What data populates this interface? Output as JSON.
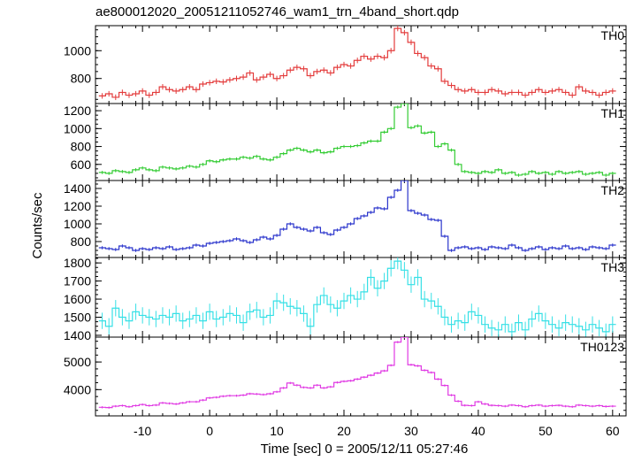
{
  "title": "ae800012020_20051211052746_wam1_trn_4band_short.qdp",
  "ylabel": "Counts/sec",
  "xlabel": "Time [sec] 0 = 2005/12/11 05:27:46",
  "chart_data": [
    {
      "type": "line",
      "panel": "TH0",
      "color": "#e33b3b",
      "ylim": [
        620,
        1180
      ],
      "yticks": [
        800,
        1000
      ],
      "xlim": [
        -17,
        62
      ],
      "x": [
        -16,
        -15,
        -14,
        -13,
        -12,
        -11,
        -10,
        -9,
        -8,
        -7,
        -6,
        -5,
        -4,
        -3,
        -2,
        -1,
        0,
        1,
        2,
        3,
        4,
        5,
        6,
        7,
        8,
        9,
        10,
        11,
        12,
        13,
        14,
        15,
        16,
        17,
        18,
        19,
        20,
        21,
        22,
        23,
        24,
        25,
        26,
        27,
        28,
        29,
        30,
        31,
        32,
        33,
        34,
        35,
        36,
        37,
        38,
        39,
        40,
        41,
        42,
        43,
        44,
        45,
        46,
        47,
        48,
        49,
        50,
        51,
        52,
        53,
        54,
        55,
        56,
        57,
        58,
        59,
        60
      ],
      "y": [
        675,
        690,
        665,
        700,
        680,
        690,
        710,
        680,
        700,
        740,
        720,
        710,
        720,
        740,
        720,
        760,
        770,
        780,
        775,
        790,
        800,
        810,
        840,
        790,
        810,
        830,
        800,
        820,
        860,
        880,
        870,
        820,
        850,
        860,
        840,
        880,
        900,
        890,
        930,
        960,
        940,
        960,
        950,
        1000,
        1160,
        1130,
        1060,
        980,
        950,
        890,
        870,
        780,
        750,
        720,
        710,
        720,
        700,
        700,
        720,
        710,
        690,
        700,
        700,
        680,
        700,
        720,
        700,
        710,
        720,
        700,
        680,
        740,
        710,
        700,
        680,
        700,
        710
      ],
      "err": 20
    },
    {
      "type": "line",
      "panel": "TH1",
      "color": "#33cc33",
      "ylim": [
        420,
        1280
      ],
      "yticks": [
        600,
        800,
        1000,
        1200
      ],
      "xlim": [
        -17,
        62
      ],
      "x": [
        -16,
        -15,
        -14,
        -13,
        -12,
        -11,
        -10,
        -9,
        -8,
        -7,
        -6,
        -5,
        -4,
        -3,
        -2,
        -1,
        0,
        1,
        2,
        3,
        4,
        5,
        6,
        7,
        8,
        9,
        10,
        11,
        12,
        13,
        14,
        15,
        16,
        17,
        18,
        19,
        20,
        21,
        22,
        23,
        24,
        25,
        26,
        27,
        28,
        29,
        30,
        31,
        32,
        33,
        34,
        35,
        36,
        37,
        38,
        39,
        40,
        41,
        42,
        43,
        44,
        45,
        46,
        47,
        48,
        49,
        50,
        51,
        52,
        53,
        54,
        55,
        56,
        57,
        58,
        59,
        60
      ],
      "y": [
        510,
        500,
        530,
        520,
        510,
        540,
        560,
        540,
        530,
        570,
        560,
        550,
        560,
        580,
        570,
        600,
        640,
        630,
        650,
        660,
        660,
        680,
        670,
        690,
        660,
        650,
        680,
        720,
        760,
        780,
        760,
        740,
        760,
        730,
        740,
        780,
        800,
        800,
        810,
        840,
        860,
        860,
        960,
        1000,
        1240,
        1280,
        1010,
        1030,
        950,
        960,
        800,
        830,
        760,
        600,
        520,
        510,
        500,
        520,
        510,
        540,
        500,
        510,
        480,
        490,
        520,
        500,
        510,
        490,
        520,
        500,
        510,
        520,
        490,
        500,
        510,
        480,
        500
      ],
      "err": 18
    },
    {
      "type": "line",
      "panel": "TH2",
      "color": "#2b35cc",
      "ylim": [
        620,
        1490
      ],
      "yticks": [
        800,
        1000,
        1200,
        1400
      ],
      "xlim": [
        -17,
        62
      ],
      "x": [
        -16,
        -15,
        -14,
        -13,
        -12,
        -11,
        -10,
        -9,
        -8,
        -7,
        -6,
        -5,
        -4,
        -3,
        -2,
        -1,
        0,
        1,
        2,
        3,
        4,
        5,
        6,
        7,
        8,
        9,
        10,
        11,
        12,
        13,
        14,
        15,
        16,
        17,
        18,
        19,
        20,
        21,
        22,
        23,
        24,
        25,
        26,
        27,
        28,
        29,
        30,
        31,
        32,
        33,
        34,
        35,
        36,
        37,
        38,
        39,
        40,
        41,
        42,
        43,
        44,
        45,
        46,
        47,
        48,
        49,
        50,
        51,
        52,
        53,
        54,
        55,
        56,
        57,
        58,
        59,
        60
      ],
      "y": [
        730,
        720,
        710,
        750,
        730,
        700,
        720,
        710,
        730,
        720,
        740,
        710,
        720,
        730,
        760,
        750,
        780,
        790,
        800,
        810,
        830,
        810,
        790,
        820,
        850,
        830,
        870,
        940,
        1000,
        960,
        940,
        920,
        960,
        900,
        880,
        930,
        960,
        1000,
        1060,
        1090,
        1130,
        1180,
        1170,
        1300,
        1380,
        1490,
        1150,
        1120,
        1100,
        1050,
        1040,
        860,
        700,
        730,
        740,
        720,
        730,
        710,
        740,
        730,
        720,
        760,
        730,
        700,
        720,
        740,
        710,
        730,
        720,
        750,
        720,
        730,
        710,
        740,
        730,
        720,
        760
      ],
      "err": 18
    },
    {
      "type": "line",
      "panel": "TH3",
      "color": "#36e0e6",
      "ylim": [
        1390,
        1830
      ],
      "yticks": [
        1400,
        1500,
        1600,
        1700,
        1800
      ],
      "xlim": [
        -17,
        62
      ],
      "x": [
        -16,
        -15,
        -14,
        -13,
        -12,
        -11,
        -10,
        -9,
        -8,
        -7,
        -6,
        -5,
        -4,
        -3,
        -2,
        -1,
        0,
        1,
        2,
        3,
        4,
        5,
        6,
        7,
        8,
        9,
        10,
        11,
        12,
        13,
        14,
        15,
        16,
        17,
        18,
        19,
        20,
        21,
        22,
        23,
        24,
        25,
        26,
        27,
        28,
        29,
        30,
        31,
        32,
        33,
        34,
        35,
        36,
        37,
        38,
        39,
        40,
        41,
        42,
        43,
        44,
        45,
        46,
        47,
        48,
        49,
        50,
        51,
        52,
        53,
        54,
        55,
        56,
        57,
        58,
        59,
        60
      ],
      "y": [
        1480,
        1450,
        1550,
        1500,
        1480,
        1530,
        1510,
        1500,
        1490,
        1510,
        1500,
        1520,
        1480,
        1490,
        1510,
        1480,
        1530,
        1490,
        1500,
        1520,
        1510,
        1470,
        1530,
        1540,
        1500,
        1510,
        1590,
        1580,
        1560,
        1550,
        1520,
        1450,
        1570,
        1620,
        1570,
        1550,
        1590,
        1620,
        1600,
        1640,
        1720,
        1660,
        1700,
        1770,
        1810,
        1760,
        1680,
        1720,
        1600,
        1590,
        1560,
        1500,
        1460,
        1480,
        1470,
        1530,
        1510,
        1460,
        1440,
        1430,
        1460,
        1420,
        1470,
        1430,
        1490,
        1520,
        1480,
        1460,
        1440,
        1470,
        1460,
        1450,
        1430,
        1460,
        1440,
        1420,
        1460
      ],
      "err": 45
    },
    {
      "type": "line",
      "panel": "TH0123",
      "color": "#e03ae3",
      "ylim": [
        3050,
        5900
      ],
      "yticks": [
        4000,
        5000
      ],
      "xlim": [
        -17,
        62
      ],
      "x": [
        -16,
        -15,
        -14,
        -13,
        -12,
        -11,
        -10,
        -9,
        -8,
        -7,
        -6,
        -5,
        -4,
        -3,
        -2,
        -1,
        0,
        1,
        2,
        3,
        4,
        5,
        6,
        7,
        8,
        9,
        10,
        11,
        12,
        13,
        14,
        15,
        16,
        17,
        18,
        19,
        20,
        21,
        22,
        23,
        24,
        25,
        26,
        27,
        28,
        29,
        30,
        31,
        32,
        33,
        34,
        35,
        36,
        37,
        38,
        39,
        40,
        41,
        42,
        43,
        44,
        45,
        46,
        47,
        48,
        49,
        50,
        51,
        52,
        53,
        54,
        55,
        56,
        57,
        58,
        59,
        60
      ],
      "y": [
        3360,
        3350,
        3400,
        3420,
        3380,
        3420,
        3460,
        3420,
        3440,
        3520,
        3500,
        3480,
        3520,
        3560,
        3560,
        3620,
        3700,
        3720,
        3760,
        3780,
        3780,
        3800,
        3850,
        3840,
        3820,
        3850,
        3920,
        4060,
        4240,
        4160,
        4080,
        4060,
        4160,
        4060,
        4100,
        4260,
        4300,
        4320,
        4380,
        4450,
        4520,
        4600,
        4680,
        4880,
        5720,
        5900,
        4900,
        4860,
        4700,
        4620,
        4380,
        4150,
        3800,
        3580,
        3430,
        3420,
        3560,
        3480,
        3430,
        3420,
        3400,
        3440,
        3420,
        3380,
        3420,
        3440,
        3400,
        3420,
        3430,
        3400,
        3380,
        3440,
        3420,
        3400,
        3420,
        3390,
        3400
      ],
      "err": 40
    }
  ],
  "xticks": [
    -10,
    0,
    10,
    20,
    30,
    40,
    50,
    60
  ]
}
